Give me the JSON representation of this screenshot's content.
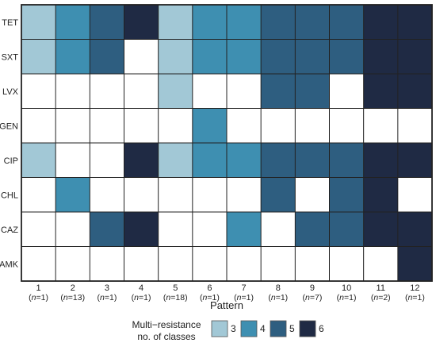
{
  "chart_data": {
    "type": "heatmap",
    "xlabel": "Pattern",
    "rows": [
      "TET",
      "SXT",
      "LVX",
      "GEN",
      "CIP",
      "CHL",
      "CAZ",
      "AMK"
    ],
    "patterns": [
      {
        "label": "1",
        "n": "1"
      },
      {
        "label": "2",
        "n": "13"
      },
      {
        "label": "3",
        "n": "1"
      },
      {
        "label": "4",
        "n": "1"
      },
      {
        "label": "5",
        "n": "18"
      },
      {
        "label": "6",
        "n": "1"
      },
      {
        "label": "7",
        "n": "1"
      },
      {
        "label": "8",
        "n": "1"
      },
      {
        "label": "9",
        "n": "7"
      },
      {
        "label": "10",
        "n": "1"
      },
      {
        "label": "11",
        "n": "2"
      },
      {
        "label": "12",
        "n": "1"
      }
    ],
    "n_prefix": "n",
    "classes": [
      3,
      4,
      5,
      6,
      3,
      4,
      4,
      5,
      5,
      5,
      6,
      6
    ],
    "matrix": [
      [
        1,
        1,
        1,
        1,
        1,
        1,
        1,
        1,
        1,
        1,
        1,
        1
      ],
      [
        1,
        1,
        1,
        0,
        1,
        1,
        1,
        1,
        1,
        1,
        1,
        1
      ],
      [
        0,
        0,
        0,
        0,
        1,
        0,
        0,
        1,
        1,
        0,
        1,
        1
      ],
      [
        0,
        0,
        0,
        0,
        0,
        1,
        0,
        0,
        0,
        0,
        0,
        0
      ],
      [
        1,
        0,
        0,
        1,
        1,
        1,
        1,
        1,
        1,
        1,
        1,
        1
      ],
      [
        0,
        1,
        0,
        0,
        0,
        0,
        0,
        1,
        0,
        1,
        1,
        0
      ],
      [
        0,
        0,
        1,
        1,
        0,
        0,
        1,
        0,
        1,
        1,
        1,
        1
      ],
      [
        0,
        0,
        0,
        0,
        0,
        0,
        0,
        0,
        0,
        0,
        0,
        1
      ]
    ],
    "colors": {
      "3": "#a2c8d6",
      "4": "#3e8fb1",
      "5": "#2e5e80",
      "6": "#1f2a44",
      "empty": "#ffffff"
    },
    "legend": {
      "title_line1": "Multi−resistance",
      "title_line2": "no. of classes",
      "items": [
        {
          "label": "3",
          "color": "#a2c8d6"
        },
        {
          "label": "4",
          "color": "#3e8fb1"
        },
        {
          "label": "5",
          "color": "#2e5e80"
        },
        {
          "label": "6",
          "color": "#1f2a44"
        }
      ]
    }
  }
}
